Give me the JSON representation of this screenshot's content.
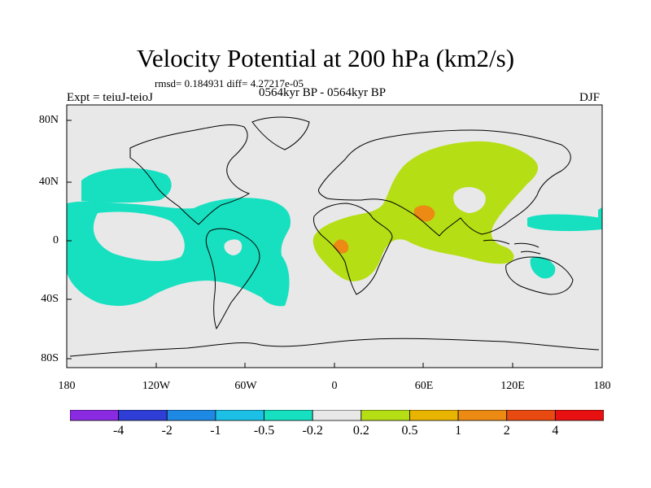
{
  "title": "Velocity Potential at 200 hPa (km2/s)",
  "stats": "rmsd= 0.184931 diff= 4.27217e-05",
  "experiment": "Expt = teiuJ-teioJ",
  "period": "0564kyr BP - 0564kyr BP",
  "season": "DJF",
  "lat_ticks": [
    "80N",
    "40N",
    "0",
    "40S",
    "80S"
  ],
  "lon_ticks": [
    "180",
    "120W",
    "60W",
    "0",
    "60E",
    "120E",
    "180"
  ],
  "colorbar": {
    "labels": [
      "-4",
      "-2",
      "-1",
      "-0.5",
      "-0.2",
      "0.2",
      "0.5",
      "1",
      "2",
      "4"
    ],
    "colors": [
      "#8a2be2",
      "#2e3ed6",
      "#1e88e5",
      "#1cc0e6",
      "#16e0c0",
      "#e8e8e8",
      "#b5de14",
      "#e8b400",
      "#ec8a14",
      "#e84a12",
      "#e81010"
    ]
  },
  "colors": {
    "land_ocean_bg": "#e8e8e8",
    "neg_fill": "#16e0c0",
    "pos_fill": "#b5de14",
    "pos2_fill": "#ec8a14"
  }
}
